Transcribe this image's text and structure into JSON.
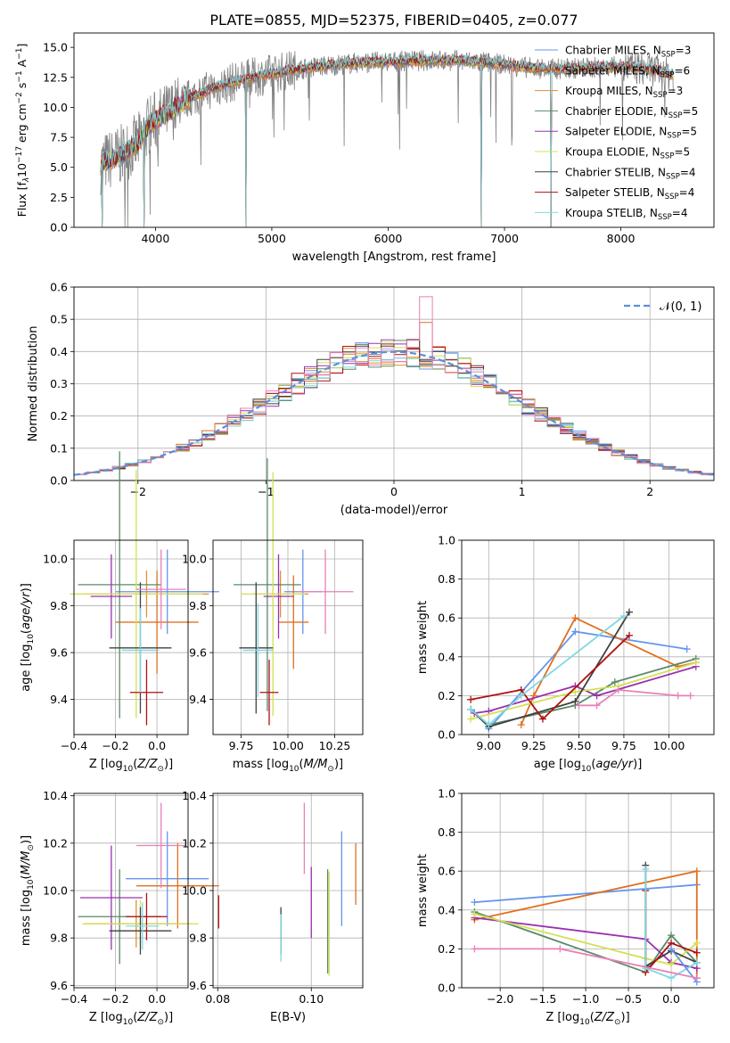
{
  "figure": {
    "title": "PLATE=0855, MJD=52375, FIBERID=0405, z=0.077"
  },
  "colors": {
    "Chabrier MILES": "#6495ed",
    "Salpeter MILES": "#e07020",
    "Kroupa MILES": "#e09030",
    "Chabrier ELODIE": "#5a8a6a",
    "Salpeter ELODIE": "#9b30b0",
    "Kroupa ELODIE": "#d4e050",
    "Chabrier STELIB": "#404040",
    "Salpeter STELIB": "#b01010",
    "Kroupa STELIB": "#80d8e0",
    "pink": "#e880b8",
    "gaussian": "#5b8fd8",
    "data_spectrum": "#808080"
  },
  "chart_data": [
    {
      "id": "spectrum",
      "type": "line",
      "xlabel": "wavelength [Angstrom, rest frame]",
      "ylabel": "Flux [f",
      "ylabel_parts": [
        "Flux [f",
        "λ",
        "10",
        "−17",
        " erg cm",
        "−2",
        " s",
        "−1",
        " A",
        "−1",
        "]"
      ],
      "xlim": [
        3300,
        8800
      ],
      "ylim": [
        0,
        16.2
      ],
      "xticks": [
        4000,
        5000,
        6000,
        7000,
        8000
      ],
      "yticks": [
        0.0,
        2.5,
        5.0,
        7.5,
        10.0,
        12.5,
        15.0
      ],
      "grid": false,
      "legend_position": "right",
      "legend": [
        {
          "name": "Chabrier MILES",
          "nssp": "3"
        },
        {
          "name": "Salpeter MILES",
          "nssp": "6"
        },
        {
          "name": "Kroupa MILES",
          "nssp": "3"
        },
        {
          "name": "Chabrier ELODIE",
          "nssp": "5"
        },
        {
          "name": "Salpeter ELODIE",
          "nssp": "5"
        },
        {
          "name": "Kroupa ELODIE",
          "nssp": "5"
        },
        {
          "name": "Chabrier STELIB",
          "nssp": "4"
        },
        {
          "name": "Salpeter STELIB",
          "nssp": "4"
        },
        {
          "name": "Kroupa STELIB",
          "nssp": "4"
        }
      ],
      "continuum": [
        [
          3530,
          5.3
        ],
        [
          3700,
          6.0
        ],
        [
          3850,
          7.0
        ],
        [
          3950,
          8.6
        ],
        [
          4100,
          9.5
        ],
        [
          4300,
          10.8
        ],
        [
          4500,
          11.6
        ],
        [
          4700,
          12.2
        ],
        [
          4900,
          12.6
        ],
        [
          5100,
          13.0
        ],
        [
          5400,
          13.4
        ],
        [
          5700,
          13.7
        ],
        [
          6000,
          13.8
        ],
        [
          6300,
          13.9
        ],
        [
          6600,
          13.9
        ],
        [
          6900,
          13.7
        ],
        [
          7200,
          13.3
        ],
        [
          7400,
          13.2
        ],
        [
          7700,
          13.3
        ],
        [
          8000,
          13.4
        ],
        [
          8300,
          13.1
        ],
        [
          8450,
          12.7
        ]
      ],
      "dips": [
        [
          3540,
          0
        ],
        [
          3900,
          0
        ],
        [
          4780,
          0
        ],
        [
          6800,
          0
        ],
        [
          7400,
          0
        ]
      ]
    },
    {
      "id": "residuals",
      "type": "histogram",
      "xlabel": "(data-model)/error",
      "ylabel": "Normed distribution",
      "xlim": [
        -2.5,
        2.5
      ],
      "ylim": [
        0,
        0.6
      ],
      "xticks": [
        -2,
        -1,
        0,
        1,
        2
      ],
      "yticks": [
        0.0,
        0.1,
        0.2,
        0.3,
        0.4,
        0.5,
        0.6
      ],
      "grid": true,
      "legend": [
        "𝒩(0, 1)"
      ],
      "legend_position": "top-right",
      "bin_width": 0.1
    },
    {
      "id": "age-Z",
      "type": "errorbar",
      "xlabel": "Z [log10(Z/Z⊙)]",
      "ylabel": "age  [log10(age/yr)]",
      "xlim": [
        -0.4,
        0.15
      ],
      "ylim": [
        9.25,
        10.08
      ],
      "xticks": [
        -0.4,
        -0.2,
        0.0
      ],
      "yticks": [
        9.4,
        9.6,
        9.8,
        10.0
      ],
      "grid": true,
      "points": [
        {
          "c": "Chabrier MILES",
          "x": 0.05,
          "xerr": 0.25,
          "y": 9.86,
          "yerr": 0.18
        },
        {
          "c": "Salpeter MILES",
          "x": 0.0,
          "xerr": 0.2,
          "y": 9.73,
          "yerr": 0.22
        },
        {
          "c": "Kroupa MILES",
          "x": -0.05,
          "xerr": 0.3,
          "y": 9.85,
          "yerr": 0.1
        },
        {
          "c": "Chabrier ELODIE",
          "x": -0.18,
          "xerr": 0.2,
          "y": 9.89,
          "yerr": 0.57
        },
        {
          "c": "Salpeter ELODIE",
          "x": -0.22,
          "xerr": 0.1,
          "y": 9.84,
          "yerr": 0.18
        },
        {
          "c": "Kroupa ELODIE",
          "x": -0.1,
          "xerr": 0.32,
          "y": 9.85,
          "yerr": 0.53
        },
        {
          "c": "Chabrier STELIB",
          "x": -0.08,
          "xerr": 0.15,
          "y": 9.62,
          "yerr": 0.28
        },
        {
          "c": "Salpeter STELIB",
          "x": -0.05,
          "xerr": 0.08,
          "y": 9.43,
          "yerr": 0.14
        },
        {
          "c": "Kroupa STELIB",
          "x": -0.08,
          "xerr": 0.09,
          "y": 9.61,
          "yerr": 0.18
        },
        {
          "c": "pink",
          "x": 0.02,
          "xerr": 0.12,
          "y": 9.87,
          "yerr": 0.17
        }
      ]
    },
    {
      "id": "age-mass",
      "type": "errorbar",
      "xlabel": "mass [log10(M/M⊙)]",
      "ylabel": "",
      "xlim": [
        9.6,
        10.4
      ],
      "ylim": [
        9.25,
        10.08
      ],
      "xticks": [
        9.75,
        10.0,
        10.25
      ],
      "yticks": [
        9.4,
        9.6,
        9.8,
        10.0
      ],
      "grid": true,
      "points": [
        {
          "c": "Chabrier MILES",
          "x": 10.08,
          "xerr": 0.1,
          "y": 9.86,
          "yerr": 0.18
        },
        {
          "c": "Salpeter MILES",
          "x": 10.03,
          "xerr": 0.08,
          "y": 9.73,
          "yerr": 0.2
        },
        {
          "c": "Kroupa MILES",
          "x": 9.96,
          "xerr": 0.15,
          "y": 9.85,
          "yerr": 0.1
        },
        {
          "c": "Chabrier ELODIE",
          "x": 9.89,
          "xerr": 0.18,
          "y": 9.89,
          "yerr": 0.54
        },
        {
          "c": "Salpeter ELODIE",
          "x": 9.95,
          "xerr": 0.08,
          "y": 9.84,
          "yerr": 0.18
        },
        {
          "c": "Kroupa ELODIE",
          "x": 9.92,
          "xerr": 0.17,
          "y": 9.85,
          "yerr": 0.52
        },
        {
          "c": "Chabrier STELIB",
          "x": 9.83,
          "xerr": 0.09,
          "y": 9.62,
          "yerr": 0.28
        },
        {
          "c": "Salpeter STELIB",
          "x": 9.9,
          "xerr": 0.05,
          "y": 9.43,
          "yerr": 0.14
        },
        {
          "c": "Kroupa STELIB",
          "x": 9.84,
          "xerr": 0.08,
          "y": 9.61,
          "yerr": 0.2
        },
        {
          "c": "pink",
          "x": 10.2,
          "xerr": 0.15,
          "y": 9.86,
          "yerr": 0.18
        }
      ]
    },
    {
      "id": "weight-age",
      "type": "line",
      "xlabel": "age  [log10(age/yr)]",
      "ylabel": "mass weight",
      "xlim": [
        8.85,
        10.25
      ],
      "ylim": [
        0,
        1.0
      ],
      "xticks": [
        9.0,
        9.25,
        9.5,
        9.75,
        10.0
      ],
      "yticks": [
        0.0,
        0.2,
        0.4,
        0.6,
        0.8,
        1.0
      ],
      "grid": true,
      "series": [
        {
          "c": "Chabrier MILES",
          "x": [
            9.0,
            9.48,
            10.1
          ],
          "y": [
            0.03,
            0.53,
            0.44
          ]
        },
        {
          "c": "Salpeter MILES",
          "x": [
            9.18,
            9.25,
            9.48,
            10.05,
            10.15
          ],
          "y": [
            0.05,
            0.2,
            0.6,
            0.35,
            0.37
          ]
        },
        {
          "c": "Chabrier ELODIE",
          "x": [
            8.9,
            9.0,
            9.48,
            9.7,
            10.15
          ],
          "y": [
            0.13,
            0.05,
            0.15,
            0.27,
            0.39
          ]
        },
        {
          "c": "Salpeter ELODIE",
          "x": [
            8.92,
            9.0,
            9.48,
            9.6,
            10.15
          ],
          "y": [
            0.11,
            0.12,
            0.25,
            0.2,
            0.35
          ]
        },
        {
          "c": "Kroupa ELODIE",
          "x": [
            8.9,
            9.48,
            9.72,
            10.15
          ],
          "y": [
            0.08,
            0.22,
            0.25,
            0.37
          ]
        },
        {
          "c": "Chabrier STELIB",
          "x": [
            8.9,
            9.0,
            9.48,
            9.78
          ],
          "y": [
            0.13,
            0.04,
            0.17,
            0.63
          ]
        },
        {
          "c": "Salpeter STELIB",
          "x": [
            8.9,
            9.18,
            9.3,
            9.78
          ],
          "y": [
            0.18,
            0.23,
            0.08,
            0.51
          ]
        },
        {
          "c": "Kroupa STELIB",
          "x": [
            8.9,
            9.0,
            9.18,
            9.75
          ],
          "y": [
            0.13,
            0.05,
            0.2,
            0.61
          ]
        },
        {
          "c": "pink",
          "x": [
            9.5,
            9.6,
            9.72,
            10.05,
            10.12
          ],
          "y": [
            0.15,
            0.15,
            0.23,
            0.2,
            0.2
          ]
        }
      ]
    },
    {
      "id": "mass-Z",
      "type": "errorbar",
      "xlabel": "Z [log10(Z/Z⊙)]",
      "ylabel": "mass [log10(M/M⊙)]",
      "xlim": [
        -0.4,
        0.15
      ],
      "ylim": [
        9.59,
        10.41
      ],
      "xticks": [
        -0.4,
        -0.2,
        0.0
      ],
      "yticks": [
        9.6,
        9.8,
        10.0,
        10.2,
        10.4
      ],
      "grid": true,
      "points": [
        {
          "c": "Chabrier MILES",
          "x": 0.05,
          "xerr": 0.2,
          "y": 10.05,
          "yerr": 0.2
        },
        {
          "c": "Salpeter MILES",
          "x": 0.1,
          "xerr": 0.2,
          "y": 10.02,
          "yerr": 0.18
        },
        {
          "c": "Kroupa MILES",
          "x": -0.1,
          "xerr": 0.25,
          "y": 9.86,
          "yerr": 0.1
        },
        {
          "c": "Chabrier ELODIE",
          "x": -0.18,
          "xerr": 0.2,
          "y": 9.89,
          "yerr": 0.2
        },
        {
          "c": "Salpeter ELODIE",
          "x": -0.22,
          "xerr": 0.15,
          "y": 9.97,
          "yerr": 0.22
        },
        {
          "c": "Kroupa ELODIE",
          "x": -0.08,
          "xerr": 0.28,
          "y": 9.86,
          "yerr": 0.1
        },
        {
          "c": "Chabrier STELIB",
          "x": -0.08,
          "xerr": 0.15,
          "y": 9.83,
          "yerr": 0.1
        },
        {
          "c": "Salpeter STELIB",
          "x": -0.05,
          "xerr": 0.1,
          "y": 9.89,
          "yerr": 0.1
        },
        {
          "c": "Kroupa STELIB",
          "x": -0.07,
          "xerr": 0.08,
          "y": 9.85,
          "yerr": 0.1
        },
        {
          "c": "pink",
          "x": 0.02,
          "xerr": 0.12,
          "y": 10.19,
          "yerr": 0.18
        }
      ]
    },
    {
      "id": "mass-EBV",
      "type": "errorbar",
      "xlabel": "E(B-V)",
      "ylabel": "",
      "xlim": [
        0.079,
        0.111
      ],
      "ylim": [
        9.59,
        10.41
      ],
      "xticks": [
        0.08,
        0.1
      ],
      "yticks": [
        9.6,
        9.8,
        10.0,
        10.2,
        10.4
      ],
      "grid": true,
      "points": [
        {
          "c": "Salpeter STELIB",
          "x": 0.0802,
          "y": 9.91,
          "yerr": 0.07
        },
        {
          "c": "Chabrier STELIB",
          "x": 0.0935,
          "y": 9.83,
          "yerr": 0.1
        },
        {
          "c": "Kroupa STELIB",
          "x": 0.0935,
          "y": 9.8,
          "yerr": 0.1
        },
        {
          "c": "pink",
          "x": 0.0985,
          "y": 10.22,
          "yerr": 0.15
        },
        {
          "c": "Salpeter ELODIE",
          "x": 0.1,
          "y": 9.95,
          "yerr": 0.15
        },
        {
          "c": "Chabrier ELODIE",
          "x": 0.1035,
          "y": 9.87,
          "yerr": 0.22
        },
        {
          "c": "Kroupa ELODIE",
          "x": 0.1038,
          "y": 9.86,
          "yerr": 0.22
        },
        {
          "c": "Chabrier MILES",
          "x": 0.1065,
          "y": 10.05,
          "yerr": 0.2
        },
        {
          "c": "Salpeter MILES",
          "x": 0.1095,
          "y": 10.07,
          "yerr": 0.13
        }
      ]
    },
    {
      "id": "weight-Z",
      "type": "line",
      "xlabel": "Z [log10(Z/Z⊙)]",
      "ylabel": "mass weight",
      "xlim": [
        -2.45,
        0.5
      ],
      "ylim": [
        0,
        1.0
      ],
      "xticks": [
        -2.0,
        -1.5,
        -1.0,
        -0.5,
        0.0
      ],
      "yticks": [
        0.0,
        0.2,
        0.4,
        0.6,
        0.8,
        1.0
      ],
      "grid": true,
      "series": [
        {
          "c": "Chabrier MILES",
          "x": [
            -2.3,
            0.3
          ],
          "y": [
            0.44,
            0.53
          ]
        },
        {
          "c": "Salpeter MILES",
          "x": [
            -2.3,
            0.3,
            0.3
          ],
          "y": [
            0.35,
            0.6,
            0.05
          ]
        },
        {
          "c": "Chabrier ELODIE",
          "x": [
            -2.3,
            -0.3,
            0.0,
            0.3
          ],
          "y": [
            0.39,
            0.08,
            0.27,
            0.13
          ]
        },
        {
          "c": "Salpeter ELODIE",
          "x": [
            -2.3,
            -0.3,
            0.0,
            0.3
          ],
          "y": [
            0.36,
            0.25,
            0.13,
            0.1
          ]
        },
        {
          "c": "Kroupa ELODIE",
          "x": [
            -2.3,
            -0.3,
            0.0,
            0.3
          ],
          "y": [
            0.38,
            0.15,
            0.12,
            0.23
          ]
        },
        {
          "c": "Chabrier STELIB",
          "x": [
            -0.3,
            -0.3,
            0.0,
            0.3
          ],
          "y": [
            0.63,
            0.11,
            0.19,
            0.13
          ]
        },
        {
          "c": "Salpeter STELIB",
          "x": [
            -0.3,
            -0.3,
            0.0,
            0.3
          ],
          "y": [
            0.5,
            0.08,
            0.23,
            0.18
          ]
        },
        {
          "c": "Kroupa STELIB",
          "x": [
            -0.3,
            -0.3,
            0.0,
            0.3
          ],
          "y": [
            0.61,
            0.1,
            0.05,
            0.13
          ]
        },
        {
          "c": "Chabrier MILES",
          "x": [
            0.0,
            0.3
          ],
          "y": [
            0.2,
            0.03
          ]
        },
        {
          "c": "pink",
          "x": [
            -2.3,
            -1.3,
            0.3
          ],
          "y": [
            0.2,
            0.2,
            0.05
          ]
        }
      ]
    }
  ]
}
